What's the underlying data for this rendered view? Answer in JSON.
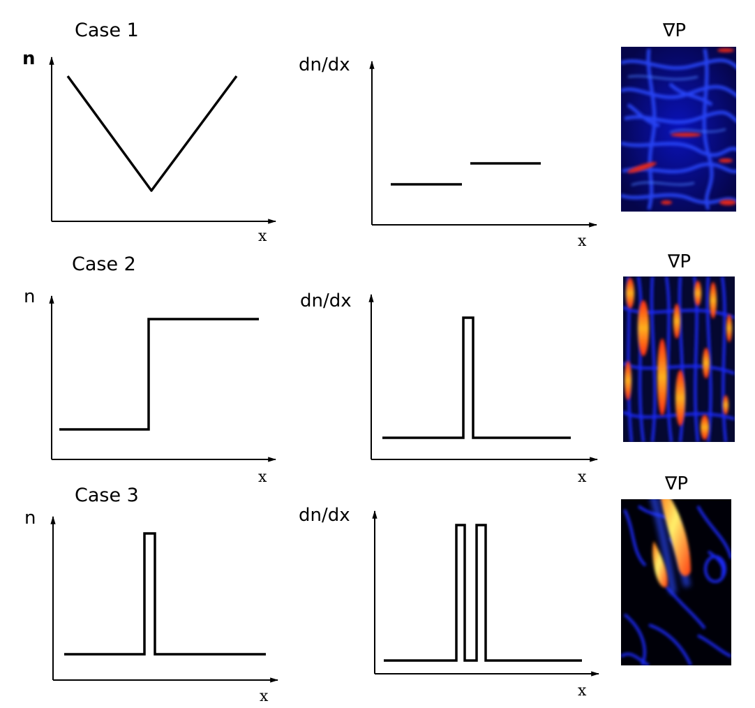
{
  "cases": [
    {
      "title": "Case 1",
      "n_label": "n",
      "x_label": "x",
      "deriv_label": "dn/dx",
      "deriv_x_label": "x",
      "gradient_label": "∇P",
      "n_profile": "V-shaped (linear decrease then linear increase)",
      "deriv_profile": "two constant levels (step)",
      "map_palette": "blue dominant with scattered red streaks"
    },
    {
      "title": "Case 2",
      "n_label": "n",
      "x_label": "x",
      "deriv_label": "dn/dx",
      "deriv_x_label": "x",
      "gradient_label": "∇P",
      "n_profile": "single step (low to high)",
      "deriv_profile": "single narrow pulse",
      "map_palette": "blue/black with many red-yellow vertical filaments"
    },
    {
      "title": "Case 3",
      "n_label": "n",
      "x_label": "x",
      "deriv_label": "dn/dx",
      "deriv_x_label": "x",
      "gradient_label": "∇P",
      "n_profile": "single narrow pulse",
      "deriv_profile": "double narrow pulse",
      "map_palette": "black/blue with one bright yellow-red crescent"
    }
  ],
  "colors": {
    "line": "#000000",
    "map_dark": "#000010",
    "map_blue": "#1a2cff",
    "map_red": "#e0261a",
    "map_yellow": "#ffe14a"
  }
}
